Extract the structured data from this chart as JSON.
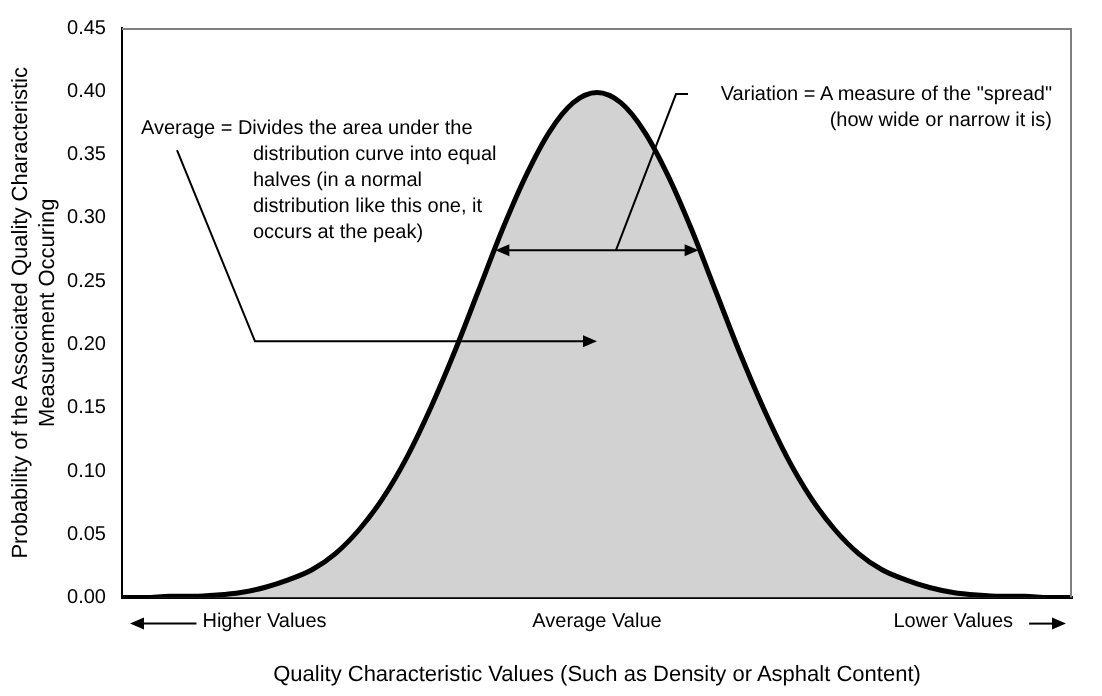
{
  "chart_data": {
    "type": "area",
    "xlabel": "Quality Characteristic Values (Such as Density or Asphalt Content)",
    "ylabel": "Probability of the Associated Quality Characteristic Measurement Occuring",
    "categories": [
      null,
      null,
      null,
      null,
      null,
      null,
      "Higher Values",
      null,
      null,
      null,
      null,
      null,
      null,
      null,
      null,
      null,
      null,
      null,
      null,
      null,
      "Average Value",
      null,
      null,
      null,
      null,
      null,
      null,
      null,
      null,
      null,
      null,
      null,
      null,
      null,
      null,
      "Lower Values",
      null,
      null,
      null,
      null,
      null
    ],
    "series": [
      {
        "color": "#000000",
        "values": [
          0,
          0,
          0.001,
          0.001,
          0.002,
          0.004,
          0.008,
          0.014,
          0.022,
          0.035,
          0.054,
          0.079,
          0.111,
          0.15,
          0.194,
          0.242,
          0.29,
          0.333,
          0.368,
          0.391,
          0.399,
          0.391,
          0.368,
          0.333,
          0.29,
          0.242,
          0.194,
          0.15,
          0.111,
          0.079,
          0.054,
          0.035,
          0.022,
          0.014,
          0.008,
          0.004,
          0.002,
          0.001,
          0.001,
          0,
          0
        ]
      }
    ],
    "ylim": [
      0,
      0.45
    ],
    "yticks": [
      {
        "value": 0,
        "label": "0.00"
      },
      {
        "value": 0.05,
        "label": "0.05"
      },
      {
        "value": 0.1,
        "label": "0.10"
      },
      {
        "value": 0.15,
        "label": "0.15"
      },
      {
        "value": 0.2,
        "label": "0.20"
      },
      {
        "value": 0.25,
        "label": "0.25"
      },
      {
        "value": 0.3,
        "label": "0.30"
      },
      {
        "value": 0.35,
        "label": "0.35"
      },
      {
        "value": 0.4,
        "label": "0.40"
      },
      {
        "value": 0.45,
        "label": "0.45"
      }
    ],
    "grid": false,
    "legend": false,
    "marker": "none",
    "line_style": "solid",
    "annotations": [
      "Average = Divides the area under the distribution curve into equal halves (in a normal distribution like this one, it occurs at the peak)",
      "Variation = A measure of the \"spread\" (how wide or narrow it is)"
    ]
  }
}
